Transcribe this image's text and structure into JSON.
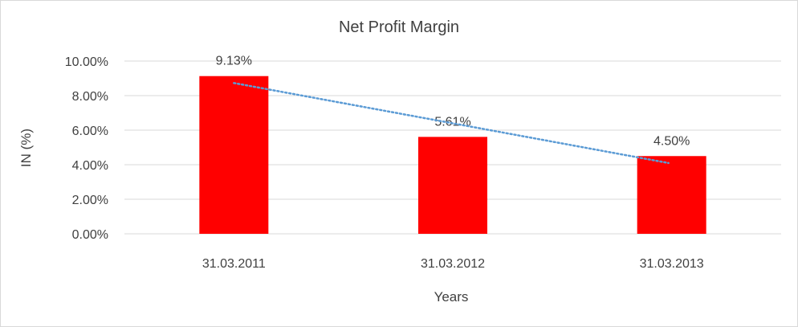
{
  "chart_data": {
    "type": "bar",
    "title": "Net Profit Margin",
    "xlabel": "Years",
    "ylabel": "IN (%)",
    "categories": [
      "31.03.2011",
      "31.03.2012",
      "31.03.2013"
    ],
    "values": [
      9.13,
      5.61,
      4.5
    ],
    "data_labels": [
      "9.13%",
      "5.61%",
      "4.50%"
    ],
    "ylim": [
      0,
      10
    ],
    "yticks": [
      0,
      2,
      4,
      6,
      8,
      10
    ],
    "ytick_labels": [
      "0.00%",
      "2.00%",
      "4.00%",
      "6.00%",
      "8.00%",
      "10.00%"
    ],
    "grid": true,
    "legend": "none",
    "trendline": {
      "type": "linear",
      "style": "dotted"
    },
    "colors": {
      "bar": "#ff0000",
      "trendline": "#5b9bd5",
      "grid": "#d9d9d9",
      "border": "#d9d9d9"
    }
  }
}
